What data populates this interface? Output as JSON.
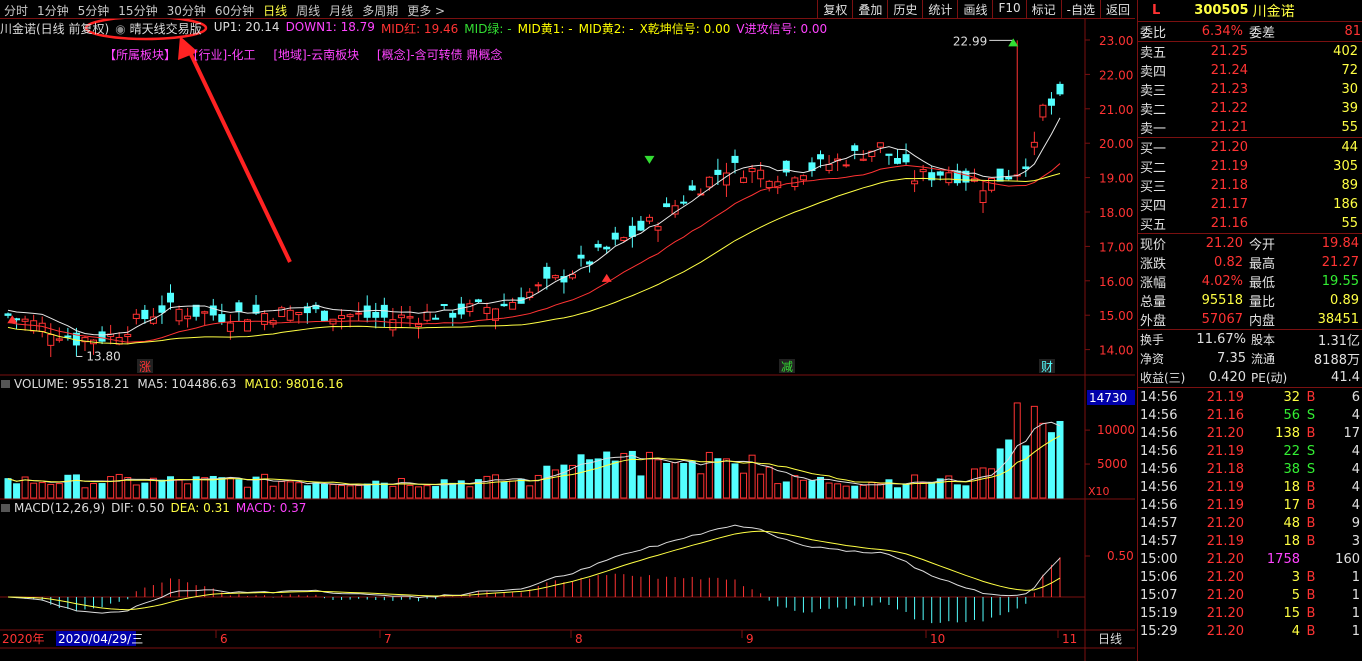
{
  "toolbar": {
    "periods": [
      "分时",
      "1分钟",
      "5分钟",
      "15分钟",
      "30分钟",
      "60分钟",
      "日线",
      "周线",
      "月线",
      "多周期",
      "更多"
    ],
    "selected": "日线",
    "right_buttons": [
      "复权",
      "叠加",
      "历史",
      "统计",
      "画线",
      "F10",
      "标记",
      "-自选",
      "返回"
    ]
  },
  "indicator_bar": {
    "stock_label": "川金诺(日线 前复权)",
    "formula": "晴天线交易版",
    "up1": "UP1: 20.14",
    "down1": "DOWN1: 18.79",
    "mid_red": "MID红: 19.46",
    "mid_green": "MID绿: -",
    "mid_yellow1": "MID黄1: -",
    "mid_yellow2": "MID黄2: -",
    "x_signal": "X乾坤信号: 0.00",
    "v_signal": "V进攻信号: 0.00"
  },
  "sectors": [
    "【所属板块】",
    "[行业]-化工",
    "[地域]-云南板块",
    "[概念]-含可转债 鼎概念"
  ],
  "price_axis": [
    "23.00",
    "22.00",
    "21.00",
    "20.00",
    "19.00",
    "18.00",
    "17.00",
    "16.00",
    "15.00",
    "14.00"
  ],
  "price_annotations": {
    "high": "22.99",
    "low": "13.80"
  },
  "event_marks": [
    "涨",
    "减",
    "财"
  ],
  "volume_bar": {
    "volume": "VOLUME: 95518.21",
    "ma5": "MA5: 104486.63",
    "ma10": "MA10: 98016.16",
    "axis": [
      "14730",
      "10000",
      "5000"
    ],
    "unit": "X10"
  },
  "macd_bar": {
    "title": "MACD(12,26,9)",
    "dif": "DIF: 0.50",
    "dea": "DEA: 0.31",
    "macd": "MACD: 0.37",
    "axis": [
      "0.50"
    ]
  },
  "date_axis": {
    "year": "2020年",
    "cursor_date": "2020/04/29/三",
    "months": [
      "6",
      "7",
      "8",
      "9",
      "10",
      "11"
    ],
    "period": "日线"
  },
  "colors": {
    "up": "#ff3333",
    "down": "#54ffff",
    "border": "#7a1010",
    "highlight": "#ffff44"
  },
  "quote": {
    "flag": "L",
    "code": "300505",
    "name": "川金诺",
    "weibi_label": "委比",
    "weibi": "6.34%",
    "weicha_label": "委差",
    "weicha": "81",
    "asks": [
      {
        "label": "卖五",
        "price": "21.25",
        "vol": "402"
      },
      {
        "label": "卖四",
        "price": "21.24",
        "vol": "72"
      },
      {
        "label": "卖三",
        "price": "21.23",
        "vol": "30"
      },
      {
        "label": "卖二",
        "price": "21.22",
        "vol": "39"
      },
      {
        "label": "卖一",
        "price": "21.21",
        "vol": "55"
      }
    ],
    "bids": [
      {
        "label": "买一",
        "price": "21.20",
        "vol": "44"
      },
      {
        "label": "买二",
        "price": "21.19",
        "vol": "305"
      },
      {
        "label": "买三",
        "price": "21.18",
        "vol": "89"
      },
      {
        "label": "买四",
        "price": "21.17",
        "vol": "186"
      },
      {
        "label": "买五",
        "price": "21.16",
        "vol": "55"
      }
    ],
    "stats": [
      {
        "l1": "现价",
        "v1": "21.20",
        "c1": "r",
        "l2": "今开",
        "v2": "19.84",
        "c2": "r"
      },
      {
        "l1": "涨跌",
        "v1": "0.82",
        "c1": "r",
        "l2": "最高",
        "v2": "21.27",
        "c2": "r"
      },
      {
        "l1": "涨幅",
        "v1": "4.02%",
        "c1": "r",
        "l2": "最低",
        "v2": "19.55",
        "c2": "g"
      },
      {
        "l1": "总量",
        "v1": "95518",
        "c1": "y",
        "l2": "量比",
        "v2": "0.89",
        "c2": "y"
      },
      {
        "l1": "外盘",
        "v1": "57067",
        "c1": "r",
        "l2": "内盘",
        "v2": "38451",
        "c2": "y"
      }
    ],
    "stats2": [
      {
        "l1": "换手",
        "v1": "11.67%",
        "l2": "股本",
        "v2": "1.31亿"
      },
      {
        "l1": "净资",
        "v1": "7.35",
        "l2": "流通",
        "v2": "8188万"
      },
      {
        "l1": "收益(三)",
        "v1": "0.420",
        "l2": "PE(动)",
        "v2": "41.4"
      }
    ],
    "ticks": [
      {
        "t": "14:56",
        "p": "21.19",
        "v": "32",
        "bs": "B",
        "n": "6"
      },
      {
        "t": "14:56",
        "p": "21.16",
        "v": "56",
        "bs": "S",
        "n": "4"
      },
      {
        "t": "14:56",
        "p": "21.20",
        "v": "138",
        "bs": "B",
        "n": "17"
      },
      {
        "t": "14:56",
        "p": "21.19",
        "v": "22",
        "bs": "S",
        "n": "4"
      },
      {
        "t": "14:56",
        "p": "21.18",
        "v": "38",
        "bs": "S",
        "n": "4"
      },
      {
        "t": "14:56",
        "p": "21.19",
        "v": "18",
        "bs": "B",
        "n": "4"
      },
      {
        "t": "14:56",
        "p": "21.19",
        "v": "17",
        "bs": "B",
        "n": "4"
      },
      {
        "t": "14:57",
        "p": "21.20",
        "v": "48",
        "bs": "B",
        "n": "9"
      },
      {
        "t": "14:57",
        "p": "21.19",
        "v": "18",
        "bs": "B",
        "n": "3"
      },
      {
        "t": "15:00",
        "p": "21.20",
        "v": "1758",
        "bs": "",
        "n": "160"
      },
      {
        "t": "15:06",
        "p": "21.20",
        "v": "3",
        "bs": "B",
        "n": "1"
      },
      {
        "t": "15:07",
        "p": "21.20",
        "v": "5",
        "bs": "B",
        "n": "1"
      },
      {
        "t": "15:19",
        "p": "21.20",
        "v": "15",
        "bs": "B",
        "n": "1"
      },
      {
        "t": "15:29",
        "p": "21.20",
        "v": "4",
        "bs": "B",
        "n": "1"
      }
    ]
  }
}
